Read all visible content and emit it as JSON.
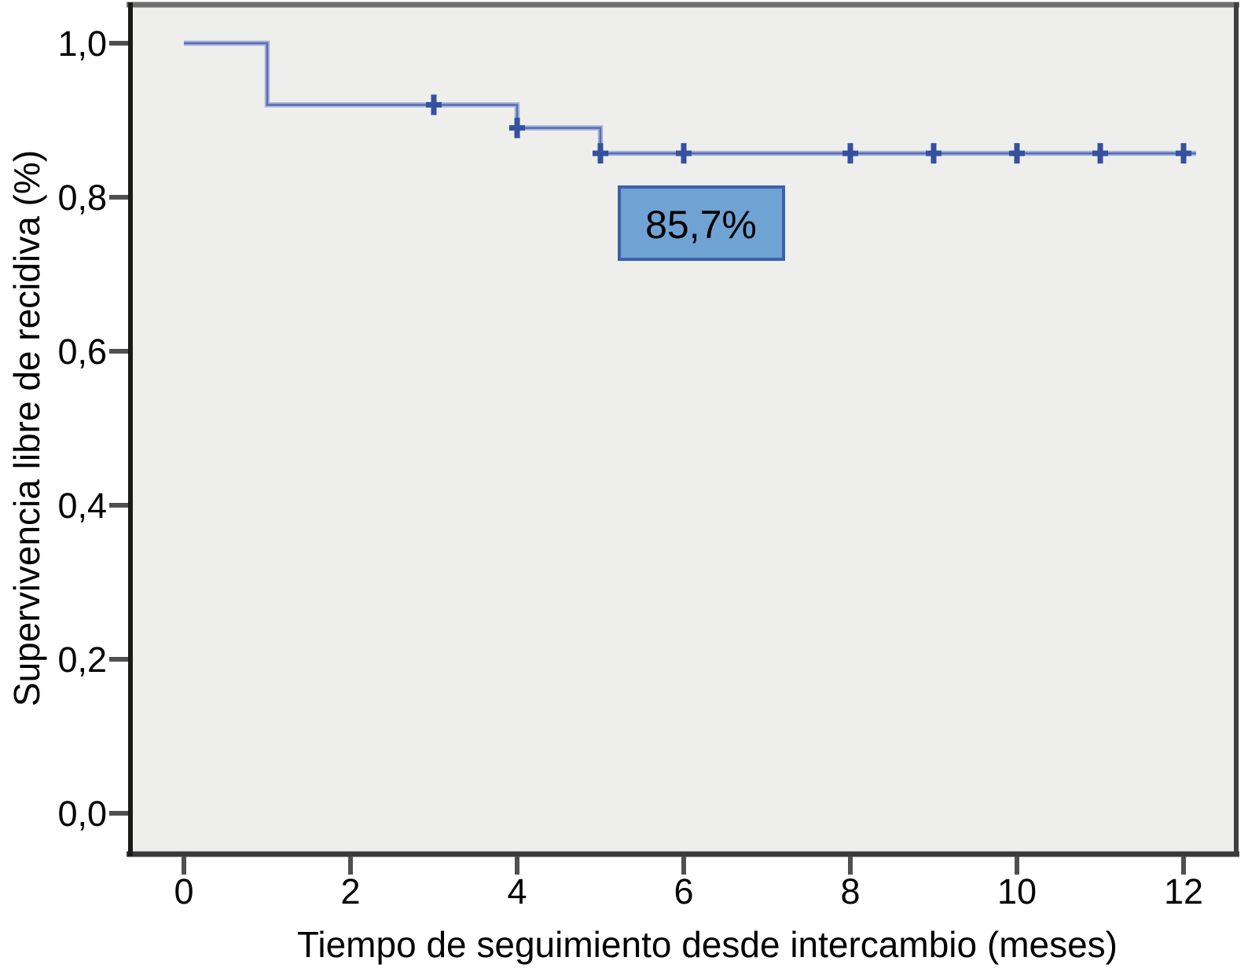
{
  "chart_data": {
    "type": "line",
    "subtype": "kaplan-meier-step-curve",
    "title": "",
    "xlabel": "Tiempo de seguimiento desde intercambio (meses)",
    "ylabel": "Supervivencia libre de recidiva (%)",
    "xlim": [
      0,
      12
    ],
    "ylim": [
      0.0,
      1.0
    ],
    "grid": false,
    "legend": "none",
    "x_ticks": {
      "values": [
        0,
        2,
        4,
        6,
        8,
        10,
        12
      ],
      "labels": [
        "0",
        "2",
        "4",
        "6",
        "8",
        "10",
        "12"
      ]
    },
    "y_ticks": {
      "values": [
        1.0,
        0.8,
        0.6,
        0.4,
        0.2,
        0.0
      ],
      "labels": [
        "1,0",
        "0,8",
        "0,6",
        "0,4",
        "0,2",
        "0,0"
      ]
    },
    "series": [
      {
        "name": "Supervivencia libre de recidiva",
        "step_points": [
          [
            0,
            1.0
          ],
          [
            1,
            1.0
          ],
          [
            1,
            0.92
          ],
          [
            4,
            0.92
          ],
          [
            4,
            0.89
          ],
          [
            5,
            0.89
          ],
          [
            5,
            0.857
          ],
          [
            12.15,
            0.857
          ]
        ],
        "event_times": [
          1,
          4,
          5
        ],
        "censor_marks": [
          {
            "t": 3,
            "s": 0.92
          },
          {
            "t": 4,
            "s": 0.89
          },
          {
            "t": 5,
            "s": 0.857
          },
          {
            "t": 6,
            "s": 0.857
          },
          {
            "t": 8,
            "s": 0.857
          },
          {
            "t": 9,
            "s": 0.857
          },
          {
            "t": 10,
            "s": 0.857
          },
          {
            "t": 11,
            "s": 0.857
          },
          {
            "t": 12,
            "s": 0.857
          }
        ],
        "final_survival": 0.857
      }
    ],
    "annotation": {
      "text": "85,7%",
      "refers_to_value": 0.857
    },
    "colors": {
      "curve_halo": "#a6b2dc",
      "curve_core": "#5b6fb0",
      "censor": "#35509e",
      "annotation_fill": "#6fa3d4",
      "annotation_border": "#3a62ac",
      "annotation_text": "#000000",
      "plot_background": "#eeeeec",
      "frame_top": "#6f6f6f",
      "frame_left": "#1a1a1a",
      "frame_bottom": "#3a3a3a",
      "frame_right": "#3f3f3f",
      "tick": "#4f4f4f",
      "text": "#000000"
    }
  }
}
